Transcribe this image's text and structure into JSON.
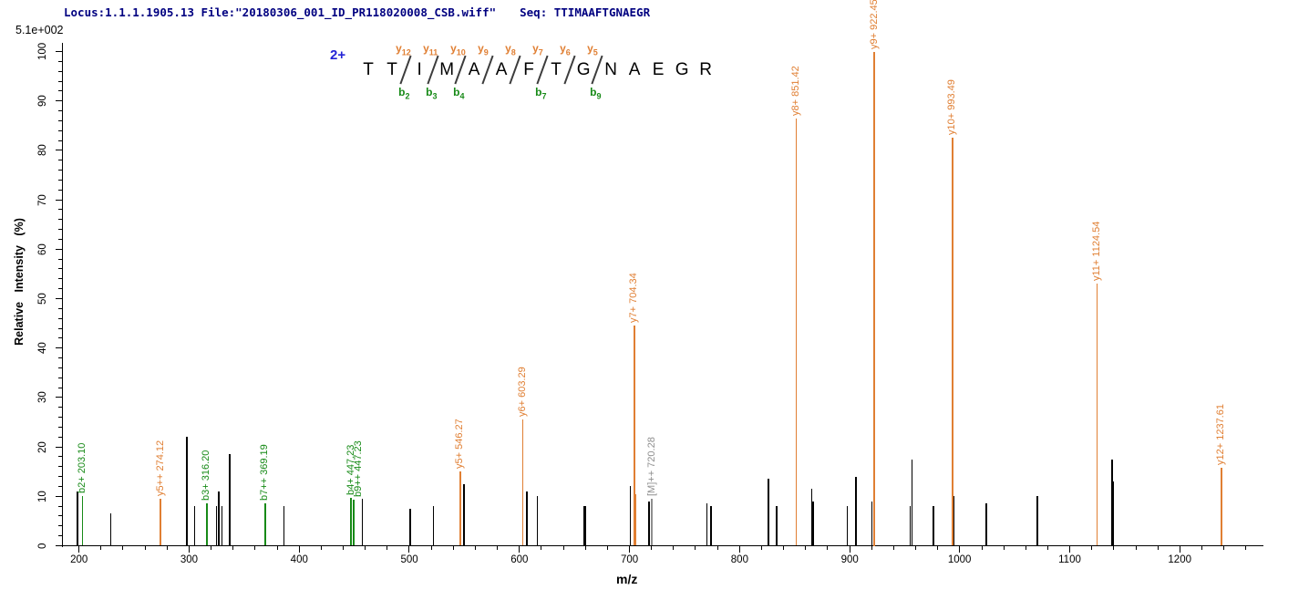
{
  "header": {
    "locus_file": "Locus:1.1.1.1905.13 File:\"20180306_001_ID_PR118020008_CSB.wiff\"",
    "seq_label": "Seq: TTIMAAFTGNAEGR"
  },
  "scale_note": "5.1e+002",
  "precursor": {
    "charge_label": "2+"
  },
  "sequence": {
    "residues": [
      "T",
      "T",
      "I",
      "M",
      "A",
      "A",
      "F",
      "T",
      "G",
      "N",
      "A",
      "E",
      "G",
      "R"
    ],
    "cleavages": [
      {
        "after_residue": 2,
        "y_ion": "y12",
        "b_ion": "b2"
      },
      {
        "after_residue": 3,
        "y_ion": "y11",
        "b_ion": "b3"
      },
      {
        "after_residue": 4,
        "y_ion": "y10",
        "b_ion": "b4"
      },
      {
        "after_residue": 5,
        "y_ion": "y9",
        "b_ion": ""
      },
      {
        "after_residue": 6,
        "y_ion": "y8",
        "b_ion": ""
      },
      {
        "after_residue": 7,
        "y_ion": "y7",
        "b_ion": "b7"
      },
      {
        "after_residue": 8,
        "y_ion": "y6",
        "b_ion": ""
      },
      {
        "after_residue": 9,
        "y_ion": "y5",
        "b_ion": "b9"
      }
    ]
  },
  "axes": {
    "x_label": "m/z",
    "y_label": "Relative Intensity (%)",
    "x_tick_labels": [
      "200",
      "300",
      "400",
      "500",
      "600",
      "700",
      "800",
      "900",
      "1000",
      "1100",
      "1200"
    ],
    "y_tick_labels": [
      "0",
      "10",
      "20",
      "30",
      "40",
      "50",
      "60",
      "70",
      "80",
      "90",
      "100"
    ],
    "x_minor_step": 20,
    "x_minor_end": 1260,
    "y_minor_step": 2
  },
  "colors": {
    "y_ion": "#e07f33",
    "b_ion": "#178a17",
    "precursor": "#8f8f8f",
    "other": "#000000",
    "header_navy": "#000080",
    "charge_blue": "#2424d6"
  },
  "chart_data": {
    "type": "bar",
    "title": "",
    "xlabel": "m/z",
    "ylabel": "Relative Intensity (%)",
    "xlim": [
      185,
      1275
    ],
    "ylim": [
      0,
      100
    ],
    "grid": false,
    "legend": false,
    "annotated_peaks": [
      {
        "label": "b2+ 203.10",
        "mz": 203.1,
        "intensity": 10.0,
        "series": "b"
      },
      {
        "label": "y5++ 274.12",
        "mz": 274.12,
        "intensity": 9.5,
        "series": "y"
      },
      {
        "label": "b3+ 316.20",
        "mz": 316.2,
        "intensity": 8.5,
        "series": "b"
      },
      {
        "label": "b7++ 369.19",
        "mz": 369.19,
        "intensity": 8.5,
        "series": "b"
      },
      {
        "label": "b4+ 447.23",
        "mz": 447.23,
        "intensity": 9.7,
        "series": "b"
      },
      {
        "label": "b9++ 447.23",
        "mz": 447.23,
        "intensity": 9.3,
        "series": "b"
      },
      {
        "label": "y5+ 546.27",
        "mz": 546.27,
        "intensity": 15.0,
        "series": "y"
      },
      {
        "label": "y6+ 603.29",
        "mz": 603.29,
        "intensity": 25.5,
        "series": "y"
      },
      {
        "label": "y7+ 704.34",
        "mz": 704.34,
        "intensity": 44.5,
        "series": "y"
      },
      {
        "label": "[M]++ 720.28",
        "mz": 720.28,
        "intensity": 9.5,
        "series": "precursor"
      },
      {
        "label": "y8+ 851.42",
        "mz": 851.42,
        "intensity": 86.5,
        "series": "y"
      },
      {
        "label": "y9+ 922.45",
        "mz": 922.45,
        "intensity": 100.0,
        "series": "y"
      },
      {
        "label": "y10+ 993.49",
        "mz": 993.49,
        "intensity": 82.5,
        "series": "y"
      },
      {
        "label": "y11+ 1124.54",
        "mz": 1124.54,
        "intensity": 53.0,
        "series": "y"
      },
      {
        "label": "y12+ 1237.61",
        "mz": 1237.61,
        "intensity": 15.8,
        "series": "y"
      }
    ],
    "unannotated_peaks": [
      {
        "mz": 198.5,
        "intensity": 11.0,
        "series": "other"
      },
      {
        "mz": 229.0,
        "intensity": 6.5,
        "series": "other"
      },
      {
        "mz": 298.0,
        "intensity": 22.0,
        "series": "other"
      },
      {
        "mz": 305.0,
        "intensity": 8.0,
        "series": "other"
      },
      {
        "mz": 325.0,
        "intensity": 8.0,
        "series": "other"
      },
      {
        "mz": 327.0,
        "intensity": 11.0,
        "series": "other"
      },
      {
        "mz": 330.0,
        "intensity": 8.0,
        "series": "other"
      },
      {
        "mz": 337.0,
        "intensity": 18.5,
        "series": "other"
      },
      {
        "mz": 386.0,
        "intensity": 8.0,
        "series": "other"
      },
      {
        "mz": 457.5,
        "intensity": 9.5,
        "series": "other"
      },
      {
        "mz": 501.0,
        "intensity": 7.5,
        "series": "other"
      },
      {
        "mz": 522.0,
        "intensity": 8.0,
        "series": "other"
      },
      {
        "mz": 549.9,
        "intensity": 12.5,
        "series": "other"
      },
      {
        "mz": 606.7,
        "intensity": 11.0,
        "series": "other"
      },
      {
        "mz": 616.2,
        "intensity": 10.0,
        "series": "other"
      },
      {
        "mz": 658.8,
        "intensity": 8.0,
        "series": "other"
      },
      {
        "mz": 660.3,
        "intensity": 8.0,
        "series": "other"
      },
      {
        "mz": 701.0,
        "intensity": 12.0,
        "series": "other"
      },
      {
        "mz": 705.7,
        "intensity": 10.5,
        "series": "y"
      },
      {
        "mz": 717.9,
        "intensity": 9.0,
        "series": "other"
      },
      {
        "mz": 770.5,
        "intensity": 8.5,
        "series": "other"
      },
      {
        "mz": 774.2,
        "intensity": 8.0,
        "series": "other"
      },
      {
        "mz": 826.2,
        "intensity": 13.5,
        "series": "other"
      },
      {
        "mz": 833.7,
        "intensity": 8.0,
        "series": "other"
      },
      {
        "mz": 865.4,
        "intensity": 11.5,
        "series": "other"
      },
      {
        "mz": 866.9,
        "intensity": 9.0,
        "series": "other"
      },
      {
        "mz": 897.7,
        "intensity": 8.0,
        "series": "other"
      },
      {
        "mz": 905.9,
        "intensity": 14.0,
        "series": "other"
      },
      {
        "mz": 920.4,
        "intensity": 9.0,
        "series": "other"
      },
      {
        "mz": 954.9,
        "intensity": 8.0,
        "series": "other"
      },
      {
        "mz": 956.5,
        "intensity": 17.5,
        "series": "other"
      },
      {
        "mz": 976.0,
        "intensity": 8.0,
        "series": "other"
      },
      {
        "mz": 994.8,
        "intensity": 10.0,
        "series": "other"
      },
      {
        "mz": 1024.0,
        "intensity": 8.5,
        "series": "other"
      },
      {
        "mz": 1070.5,
        "intensity": 10.0,
        "series": "other"
      },
      {
        "mz": 1138.3,
        "intensity": 17.5,
        "series": "other"
      },
      {
        "mz": 1139.8,
        "intensity": 13.0,
        "series": "other"
      }
    ]
  }
}
